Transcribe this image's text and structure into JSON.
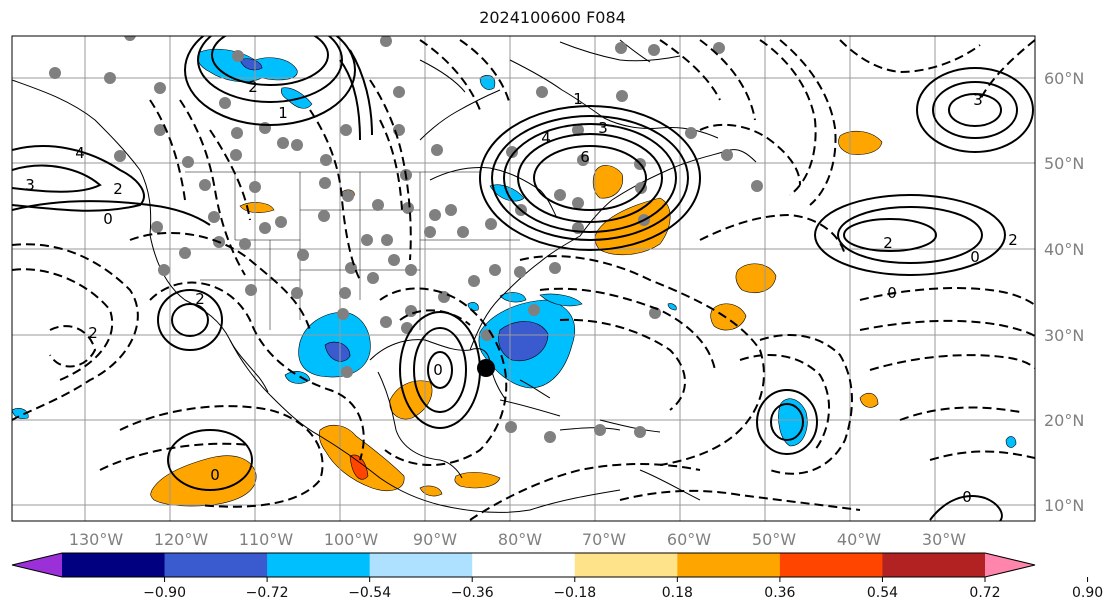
{
  "title": "2024100600 F084",
  "lat_labels": [
    "60°N",
    "50°N",
    "40°N",
    "30°N",
    "20°N",
    "10°N"
  ],
  "lon_labels": [
    "130°W",
    "120°W",
    "110°W",
    "100°W",
    "90°W",
    "80°W",
    "70°W",
    "60°W",
    "50°W",
    "40°W",
    "30°W"
  ],
  "colorbar": {
    "colors": [
      "#9b30d9",
      "#000080",
      "#3a5ad0",
      "#00bfff",
      "#aee0ff",
      "#ffffff",
      "#ffe38a",
      "#ffa500",
      "#ff4500",
      "#b22222",
      "#ff85ad"
    ],
    "ticks": [
      "−0.90",
      "−0.72",
      "−0.54",
      "−0.36",
      "−0.18",
      "0.18",
      "0.36",
      "0.54",
      "0.72",
      "0.90"
    ]
  },
  "contour_labels": [
    "6",
    "4",
    "3",
    "3",
    "2",
    "1",
    "0",
    "2",
    "1",
    "4",
    "3",
    "2",
    "0",
    "2",
    "2",
    "2",
    "0",
    "0",
    "0",
    "0"
  ],
  "marker_point": {
    "lon": -84.5,
    "lat": 26.5
  }
}
